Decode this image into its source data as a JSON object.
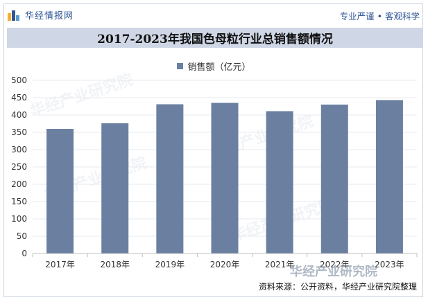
{
  "header": {
    "brand_name": "华经情报网",
    "slogan": "专业严谨 • 客观科学"
  },
  "chart_data": {
    "type": "bar",
    "title": "2017-2023年我国色母粒行业总销售额情况",
    "categories": [
      "2017年",
      "2018年",
      "2019年",
      "2020年",
      "2021年",
      "2022年",
      "2023年"
    ],
    "series": [
      {
        "name": "销售额（亿元）",
        "values": [
          360,
          376,
          431,
          435,
          411,
          430,
          443
        ]
      }
    ],
    "ylim": [
      0,
      500
    ],
    "yticks": [
      0,
      50,
      100,
      150,
      200,
      250,
      300,
      350,
      400,
      450,
      500
    ],
    "xlabel": "",
    "ylabel": "",
    "legend_position": "top-center",
    "bar_color": "#6b7fa1"
  },
  "footer": {
    "source": "资料来源：公开资料，华经产业研究院整理",
    "watermark_corner": "华经产业研究院"
  }
}
